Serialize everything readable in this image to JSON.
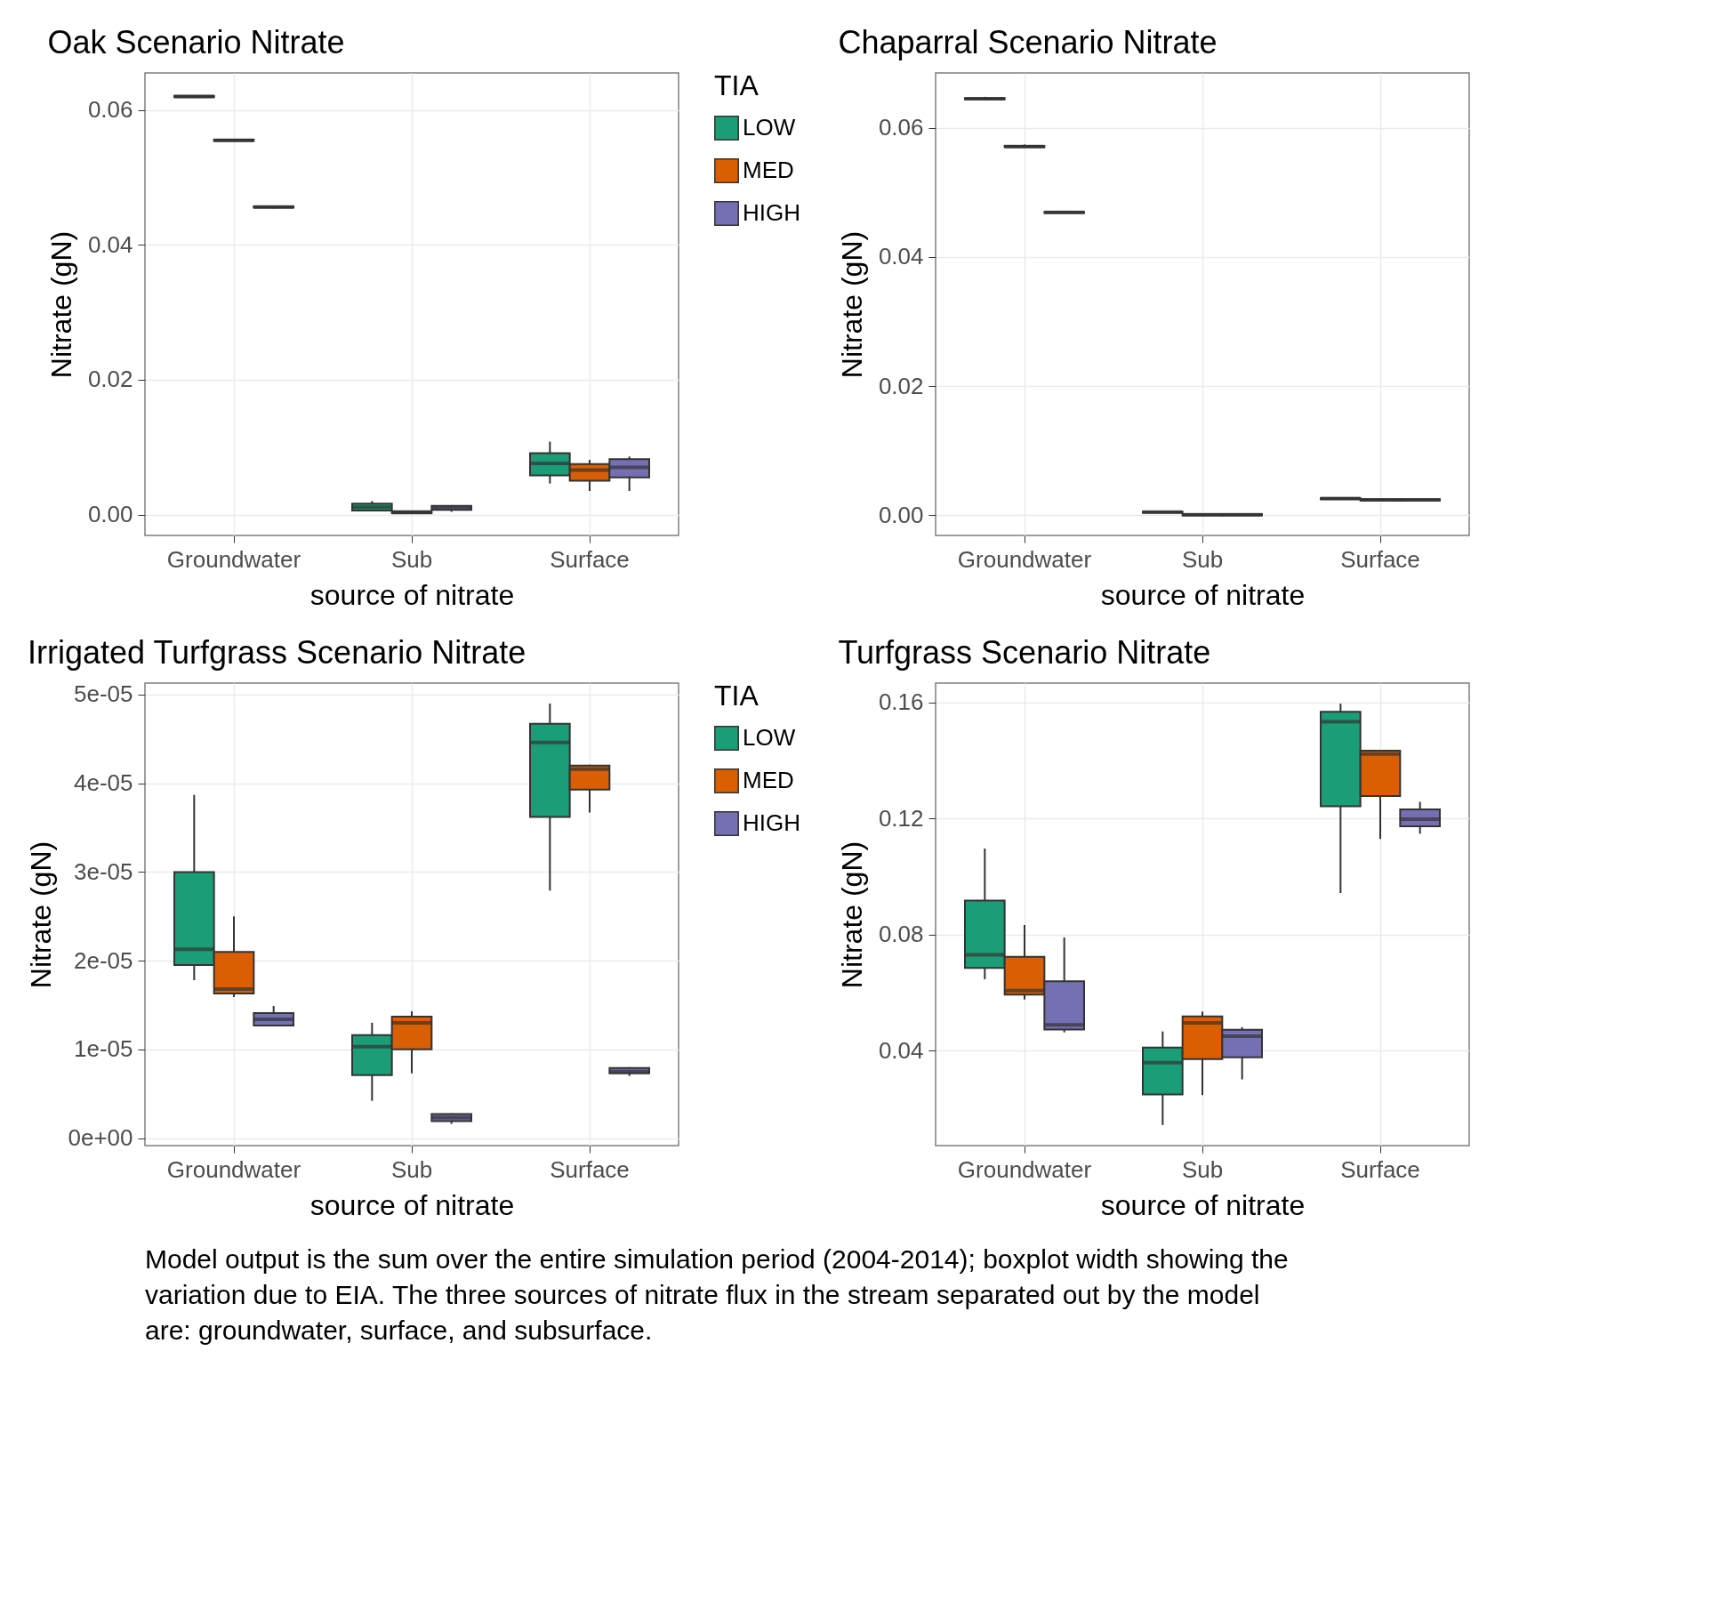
{
  "chart_data": [
    {
      "type": "box",
      "title": "Oak Scenario Nitrate",
      "xlabel": "source of nitrate",
      "ylabel": "Nitrate (gN)",
      "categories": [
        "Groundwater",
        "Sub",
        "Surface"
      ],
      "ylim": [
        -0.0031,
        0.0655
      ],
      "yticks": [
        {
          "value": 0,
          "label": "0.00"
        },
        0.02,
        0.04,
        0.06
      ],
      "grid": true,
      "legend": "right",
      "legend_title": "TIA",
      "series": [
        {
          "name": "LOW",
          "color": "#1b9e77",
          "boxes": [
            {
              "low": 0.0618,
              "q1": 0.0619,
              "median": 0.062,
              "q3": 0.0621,
              "high": 0.0622
            },
            {
              "low": 0.0005,
              "q1": 0.0006,
              "median": 0.0011,
              "q3": 0.0016,
              "high": 0.002
            },
            {
              "low": 0.0046,
              "q1": 0.0058,
              "median": 0.0076,
              "q3": 0.0091,
              "high": 0.0108
            }
          ]
        },
        {
          "name": "MED",
          "color": "#d95f02",
          "boxes": [
            {
              "low": 0.0553,
              "q1": 0.0554,
              "median": 0.0555,
              "q3": 0.0556,
              "high": 0.0557
            },
            {
              "low": 0.0001,
              "q1": 0.0002,
              "median": 0.0003,
              "q3": 0.0005,
              "high": 0.0006
            },
            {
              "low": 0.0035,
              "q1": 0.005,
              "median": 0.0066,
              "q3": 0.0075,
              "high": 0.0081
            }
          ]
        },
        {
          "name": "HIGH",
          "color": "#7570b3",
          "boxes": [
            {
              "low": 0.0454,
              "q1": 0.0455,
              "median": 0.0456,
              "q3": 0.0457,
              "high": 0.0458
            },
            {
              "low": 0.0004,
              "q1": 0.0007,
              "median": 0.001,
              "q3": 0.0013,
              "high": 0.0014
            },
            {
              "low": 0.0035,
              "q1": 0.0055,
              "median": 0.007,
              "q3": 0.0082,
              "high": 0.0086
            }
          ]
        }
      ]
    },
    {
      "type": "box",
      "title": "Chaparral Scenario Nitrate",
      "xlabel": "source of nitrate",
      "ylabel": "Nitrate (gN)",
      "categories": [
        "Groundwater",
        "Sub",
        "Surface"
      ],
      "ylim": [
        -0.0031,
        0.0685
      ],
      "yticks": [
        {
          "value": 0,
          "label": "0.00"
        },
        0.02,
        0.04,
        0.06
      ],
      "grid": true,
      "series": [
        {
          "color": "#1b9e77",
          "boxes": [
            {
              "low": 0.0643,
              "q1": 0.0644,
              "median": 0.0645,
              "q3": 0.0646,
              "high": 0.0648
            },
            {
              "low": 0.0004,
              "q1": 0.0004,
              "median": 0.0005,
              "q3": 0.0006,
              "high": 0.0006
            },
            {
              "low": 0.0025,
              "q1": 0.0025,
              "median": 0.0026,
              "q3": 0.0027,
              "high": 0.0027
            }
          ]
        },
        {
          "color": "#d95f02",
          "boxes": [
            {
              "low": 0.0569,
              "q1": 0.057,
              "median": 0.0571,
              "q3": 0.0572,
              "high": 0.0574
            },
            {
              "low": 0.0,
              "q1": 0.0,
              "median": 0.0001,
              "q3": 0.0002,
              "high": 0.0002
            },
            {
              "low": 0.0023,
              "q1": 0.0023,
              "median": 0.0024,
              "q3": 0.0025,
              "high": 0.0025
            }
          ]
        },
        {
          "color": "#7570b3",
          "boxes": [
            {
              "low": 0.0468,
              "q1": 0.0468,
              "median": 0.0469,
              "q3": 0.047,
              "high": 0.0471
            },
            {
              "low": 0.0,
              "q1": 0.0,
              "median": 0.0001,
              "q3": 0.0002,
              "high": 0.0002
            },
            {
              "low": 0.0023,
              "q1": 0.0023,
              "median": 0.0024,
              "q3": 0.0025,
              "high": 0.0025
            }
          ]
        }
      ]
    },
    {
      "type": "box",
      "title": "Irrigated Turfgrass Scenario Nitrate",
      "xlabel": "source of nitrate",
      "ylabel": "Nitrate (gN)",
      "categories": [
        "Groundwater",
        "Sub",
        "Surface"
      ],
      "ylim": [
        -8.5e-07,
        5.13e-05
      ],
      "yticks": [
        {
          "value": 0,
          "label": "0e+00"
        },
        {
          "value": 1e-05,
          "label": "1e-05"
        },
        {
          "value": 2e-05,
          "label": "2e-05"
        },
        {
          "value": 3e-05,
          "label": "3e-05"
        },
        {
          "value": 4e-05,
          "label": "4e-05"
        },
        {
          "value": 5e-05,
          "label": "5e-05"
        }
      ],
      "grid": true,
      "legend": "right",
      "legend_title": "TIA",
      "annotations": [
        "Model output is the sum over the entire simulation period (2004-2014);  boxplot width showing the variation due to EIA. The three sources of nitrate flux in the stream separated out by the model are: groundwater, surface, and subsurface."
      ],
      "series": [
        {
          "name": "LOW",
          "color": "#1b9e77",
          "boxes": [
            {
              "low": 1.78e-05,
              "q1": 1.95e-05,
              "median": 2.13e-05,
              "q3": 3e-05,
              "high": 3.87e-05
            },
            {
              "low": 4.2e-06,
              "q1": 7.1e-06,
              "median": 1.03e-05,
              "q3": 1.16e-05,
              "high": 1.3e-05
            },
            {
              "low": 2.79e-05,
              "q1": 3.62e-05,
              "median": 4.46e-05,
              "q3": 4.67e-05,
              "high": 4.9e-05
            }
          ]
        },
        {
          "name": "MED",
          "color": "#d95f02",
          "boxes": [
            {
              "low": 1.59e-05,
              "q1": 1.63e-05,
              "median": 1.68e-05,
              "q3": 2.1e-05,
              "high": 2.5e-05
            },
            {
              "low": 7.3e-06,
              "q1": 1e-05,
              "median": 1.3e-05,
              "q3": 1.37e-05,
              "high": 1.43e-05
            },
            {
              "low": 3.67e-05,
              "q1": 3.93e-05,
              "median": 4.16e-05,
              "q3": 4.2e-05,
              "high": 4.21e-05
            }
          ]
        },
        {
          "name": "HIGH",
          "color": "#7570b3",
          "boxes": [
            {
              "low": 1.26e-05,
              "q1": 1.27e-05,
              "median": 1.34e-05,
              "q3": 1.41e-05,
              "high": 1.49e-05
            },
            {
              "low": 1.6e-06,
              "q1": 1.9e-06,
              "median": 2.3e-06,
              "q3": 2.7e-06,
              "high": 2.8e-06
            },
            {
              "low": 7e-06,
              "q1": 7.3e-06,
              "median": 7.5e-06,
              "q3": 7.9e-06,
              "high": 8e-06
            }
          ]
        }
      ]
    },
    {
      "type": "box",
      "title": "Turfgrass Scenario Nitrate",
      "xlabel": "source of nitrate",
      "ylabel": "Nitrate (gN)",
      "categories": [
        "Groundwater",
        "Sub",
        "Surface"
      ],
      "ylim": [
        0.0073,
        0.1666
      ],
      "yticks": [
        0.04,
        0.08,
        0.12,
        0.16
      ],
      "grid": true,
      "series": [
        {
          "color": "#1b9e77",
          "boxes": [
            {
              "low": 0.0646,
              "q1": 0.0685,
              "median": 0.073,
              "q3": 0.0917,
              "high": 0.1096
            },
            {
              "low": 0.0144,
              "q1": 0.0249,
              "median": 0.0359,
              "q3": 0.0411,
              "high": 0.0466
            },
            {
              "low": 0.0943,
              "q1": 0.1242,
              "median": 0.1533,
              "q3": 0.1567,
              "high": 0.1595
            }
          ]
        },
        {
          "color": "#d95f02",
          "boxes": [
            {
              "low": 0.0576,
              "q1": 0.0593,
              "median": 0.0607,
              "q3": 0.0723,
              "high": 0.0833
            },
            {
              "low": 0.0247,
              "q1": 0.0371,
              "median": 0.0496,
              "q3": 0.0518,
              "high": 0.0535
            },
            {
              "low": 0.1129,
              "q1": 0.1277,
              "median": 0.1422,
              "q3": 0.1433,
              "high": 0.1436
            }
          ]
        },
        {
          "color": "#7570b3",
          "boxes": [
            {
              "low": 0.0463,
              "q1": 0.0473,
              "median": 0.0489,
              "q3": 0.0639,
              "high": 0.079
            },
            {
              "low": 0.0301,
              "q1": 0.0377,
              "median": 0.045,
              "q3": 0.0472,
              "high": 0.0481
            },
            {
              "low": 0.1147,
              "q1": 0.1173,
              "median": 0.1197,
              "q3": 0.1231,
              "high": 0.1257
            }
          ]
        }
      ]
    }
  ]
}
